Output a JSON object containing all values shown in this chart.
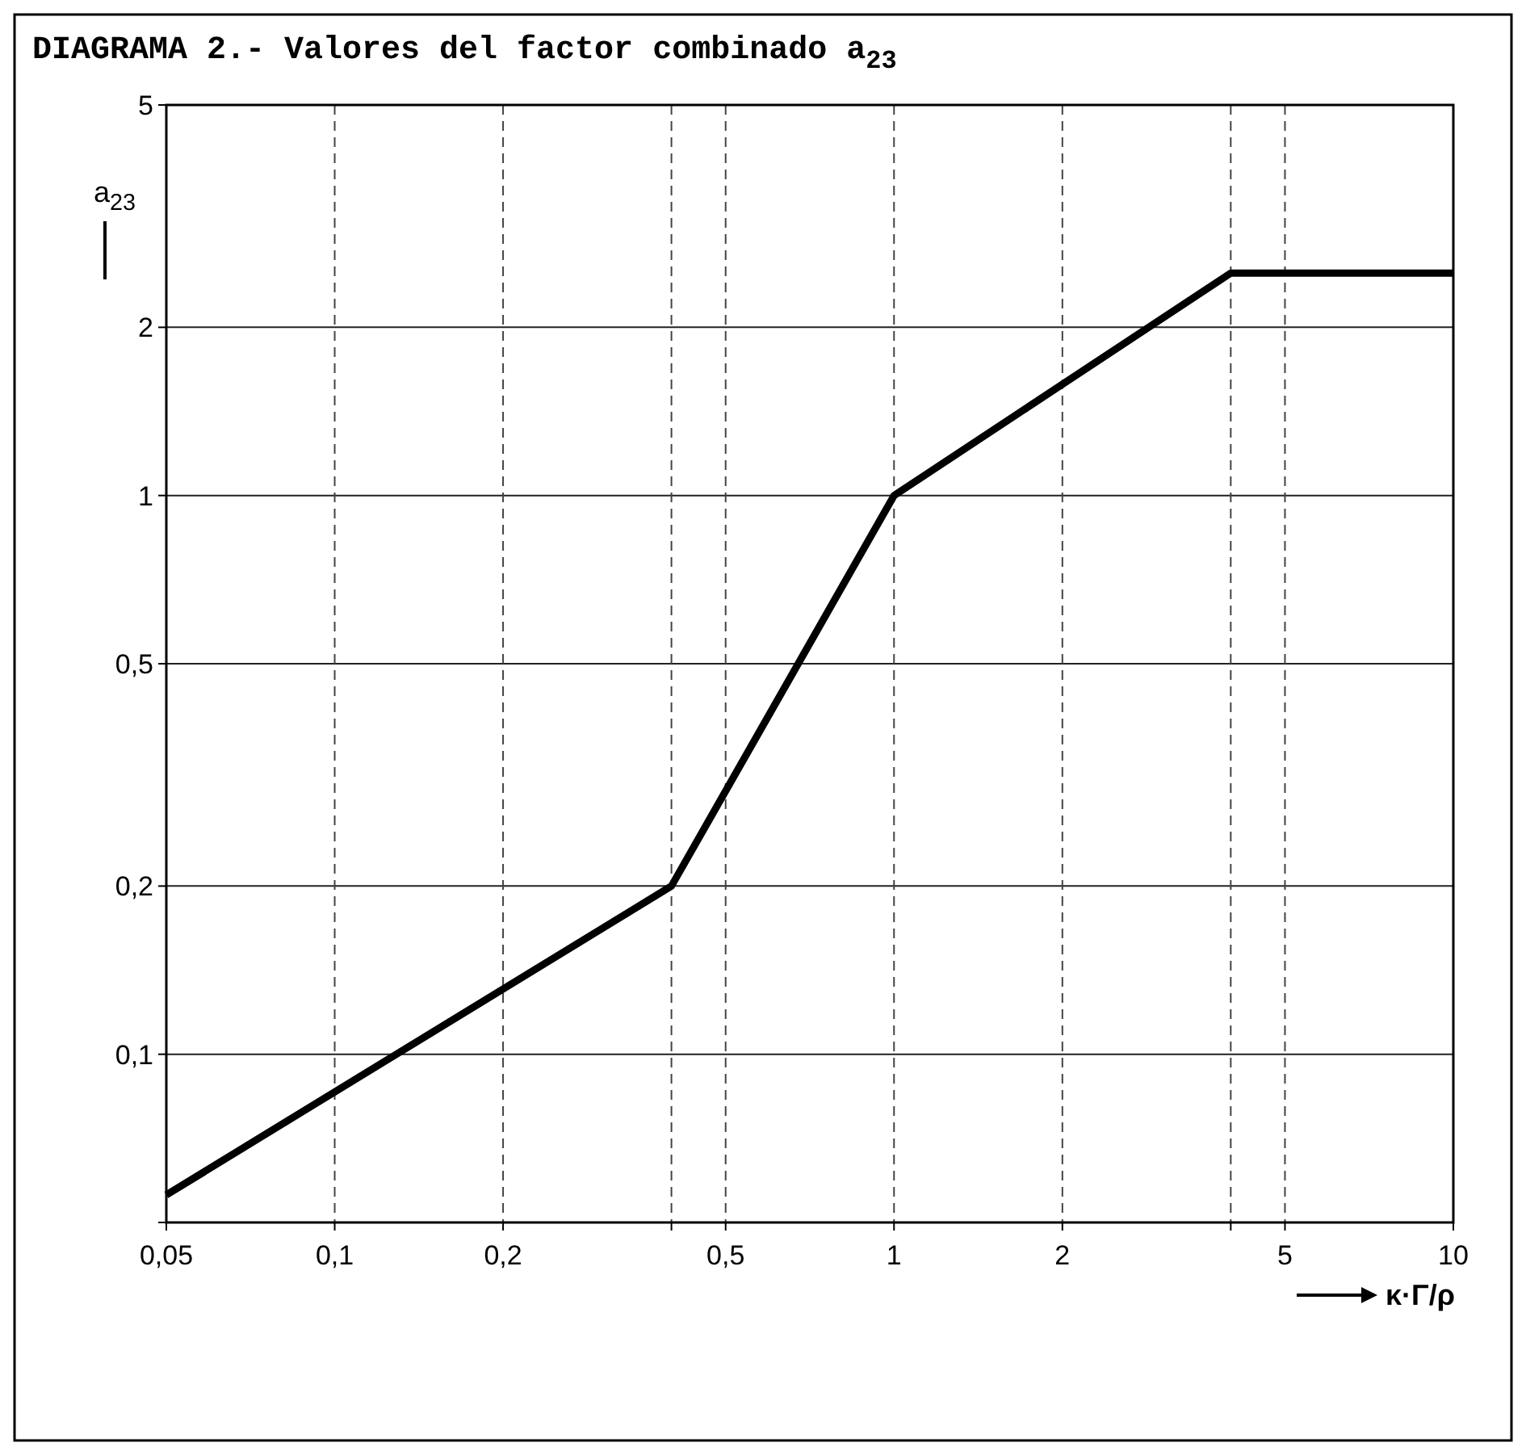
{
  "chart_data": {
    "type": "line",
    "title": "DIAGRAMA 2.- Valores del factor combinado a$_{23}$",
    "xlabel": "κ·Γ/ρ",
    "ylabel": "a$_{23}$",
    "x": [
      0.05,
      0.4,
      1,
      4,
      10
    ],
    "series": [
      {
        "color": "#000000",
        "values": [
          0.056,
          0.2,
          1,
          2.5,
          2.5
        ]
      }
    ],
    "log": "xy",
    "xlim": [
      0.05,
      10
    ],
    "ylim": [
      0.05,
      5
    ],
    "xticks": [
      {
        "value": 0.05,
        "label": "0,05"
      },
      {
        "value": 0.1,
        "label": "0,1"
      },
      {
        "value": 0.2,
        "label": "0,2"
      },
      {
        "value": 0.4,
        "label": null
      },
      {
        "value": 0.5,
        "label": "0,5"
      },
      1,
      2,
      {
        "value": 4,
        "label": null
      },
      5,
      10
    ],
    "yticks": [
      {
        "value": 0.05,
        "label": null
      },
      {
        "value": 0.1,
        "label": "0,1"
      },
      {
        "value": 0.2,
        "label": "0,2"
      },
      {
        "value": 0.5,
        "label": "0,5"
      },
      1,
      2,
      5
    ],
    "grid": true,
    "marker": "none",
    "line_style": "solid"
  }
}
